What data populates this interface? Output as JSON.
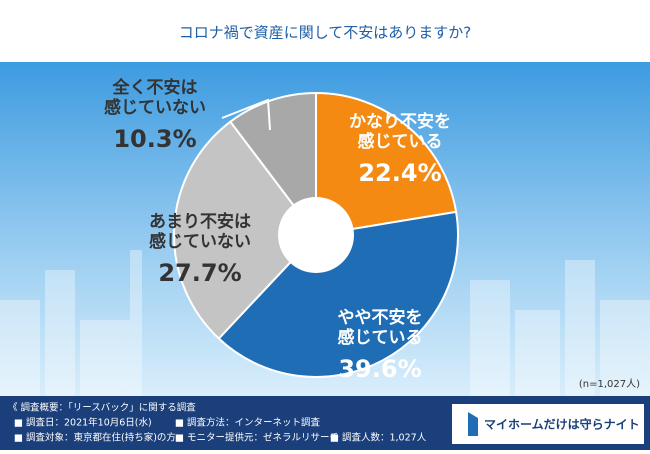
{
  "chart_data": {
    "type": "pie",
    "donut": true,
    "title": "コロナ禍で資産に関して不安はありますか?",
    "categories": [
      [
        "かなり不安を",
        "感じている"
      ],
      [
        "やや不安を",
        "感じている"
      ],
      [
        "あまり不安は",
        "感じていない"
      ],
      [
        "全く不安は",
        "感じていない"
      ]
    ],
    "values": [
      22.4,
      39.6,
      27.7,
      10.3
    ],
    "value_labels": [
      "22.4%",
      "39.6%",
      "27.7%",
      "10.3%"
    ],
    "colors": [
      "#f58a12",
      "#1f6db5",
      "#c4c4c4",
      "#a8a8a8"
    ],
    "note": "(n=1,027人)"
  },
  "footer": {
    "heading": "《 調査概要：「リースバック」に関する調査",
    "items": [
      "■ 調査日：2021年10月6日(水)",
      "■ 調査方法：インターネット調査",
      "■ 調査対象：東京都在住(持ち家)の方",
      "■ モニター提供元：ゼネラルリサーチ",
      "■ 調査人数：1,027人"
    ],
    "logo": "マイホームだけは守らナイト"
  }
}
